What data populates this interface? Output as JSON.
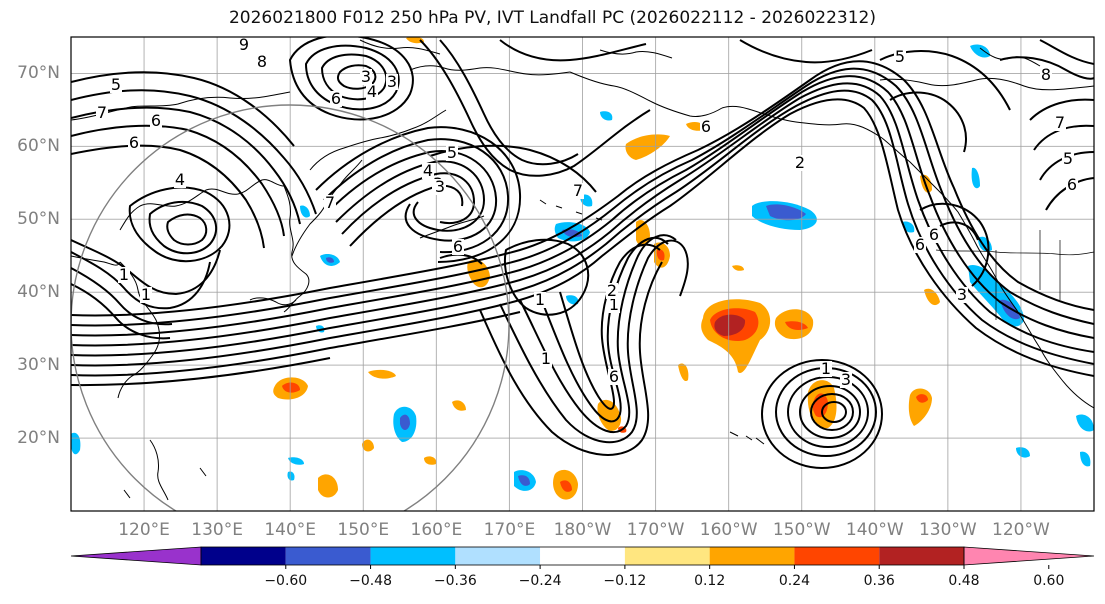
{
  "title": "2026021800 F012 250 hPa PV, IVT Landfall PC (2026022112 - 2026022312)",
  "map": {
    "projection": "plate-carree",
    "lon_range_east": [
      110,
      250
    ],
    "lat_range": [
      10,
      75
    ],
    "gridlines": true,
    "lat_labels": [
      "70°N",
      "60°N",
      "50°N",
      "40°N",
      "30°N",
      "20°N"
    ],
    "lon_labels": [
      "120°E",
      "130°E",
      "140°E",
      "150°E",
      "160°E",
      "170°E",
      "180°W",
      "170°W",
      "160°W",
      "150°W",
      "140°W",
      "130°W",
      "120°W"
    ],
    "contour_labels": [
      "5",
      "7",
      "6",
      "6",
      "4",
      "9",
      "8",
      "6",
      "3",
      "3",
      "4",
      "7",
      "3",
      "1",
      "1",
      "4",
      "3",
      "5",
      "6",
      "1",
      "1",
      "7",
      "2",
      "6",
      "1",
      "2",
      "3",
      "1",
      "6",
      "6",
      "5",
      "6",
      "7",
      "3",
      "5",
      "6",
      "8"
    ],
    "circle": {
      "center_lon": 140,
      "center_lat": 36,
      "radius_deg": 25
    }
  },
  "colorbar": {
    "tick_labels": [
      "−0.60",
      "−0.48",
      "−0.36",
      "−0.24",
      "−0.12",
      "0.12",
      "0.24",
      "0.36",
      "0.48",
      "0.60"
    ],
    "colors": [
      "#9932cc",
      "#00008b",
      "#3a5bd0",
      "#00bfff",
      "#b0e0ff",
      "#ffffff",
      "#ffe680",
      "#ffa500",
      "#ff4500",
      "#b22222",
      "#ff85b0"
    ],
    "extend": "both"
  },
  "colors": {
    "contour": "#000000",
    "grid": "#a0a0a0",
    "coast": "#000000",
    "circle": "#808080"
  }
}
